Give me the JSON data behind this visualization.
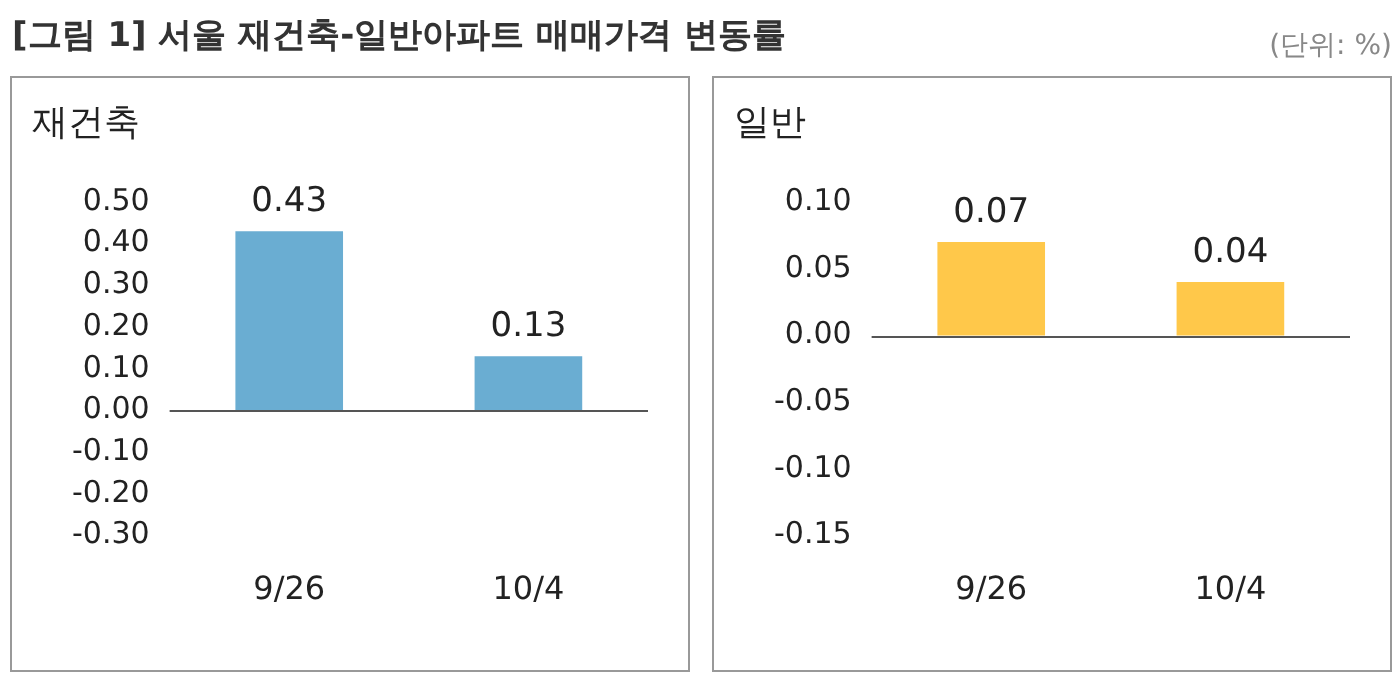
{
  "chart_data": [
    {
      "type": "bar",
      "title": "[그림 1] 서울 재건축-일반아파트 매매가격 변동률",
      "subtitle": "재건축",
      "categories": [
        "9/26",
        "10/4"
      ],
      "values": [
        0.43,
        0.13
      ],
      "color": "#6aadd2",
      "ylim": [
        -0.3,
        0.5
      ],
      "yticks": [
        {
          "value": -0.3,
          "label": "-0.30"
        },
        {
          "value": -0.2,
          "label": "-0.20"
        },
        {
          "value": -0.1,
          "label": "-0.10"
        },
        {
          "value": 0,
          "label": "0.00"
        },
        {
          "value": 0.1,
          "label": "0.10"
        },
        {
          "value": 0.2,
          "label": "0.20"
        },
        {
          "value": 0.3,
          "label": "0.30"
        },
        {
          "value": 0.4,
          "label": "0.40"
        },
        {
          "value": 0.5,
          "label": "0.50"
        }
      ],
      "data_labels": true,
      "grid": false,
      "legend": false,
      "ref_lines": [
        {
          "axis": "y",
          "value": 0,
          "color": "#555555"
        }
      ]
    },
    {
      "type": "bar",
      "subtitle": "일반",
      "annotations": [
        "(단위: %)"
      ],
      "categories": [
        "9/26",
        "10/4"
      ],
      "values": [
        0.07,
        0.04
      ],
      "color": "#ffc84a",
      "ylim": [
        -0.15,
        0.1
      ],
      "yticks": [
        {
          "value": -0.15,
          "label": "-0.15"
        },
        {
          "value": -0.1,
          "label": "-0.10"
        },
        {
          "value": -0.05,
          "label": "-0.05"
        },
        {
          "value": 0,
          "label": "0.00"
        },
        {
          "value": 0.05,
          "label": "0.05"
        },
        {
          "value": 0.1,
          "label": "0.10"
        }
      ],
      "data_labels": true,
      "grid": false,
      "legend": false,
      "ref_lines": [
        {
          "axis": "y",
          "value": 0,
          "color": "#555555"
        }
      ]
    }
  ]
}
